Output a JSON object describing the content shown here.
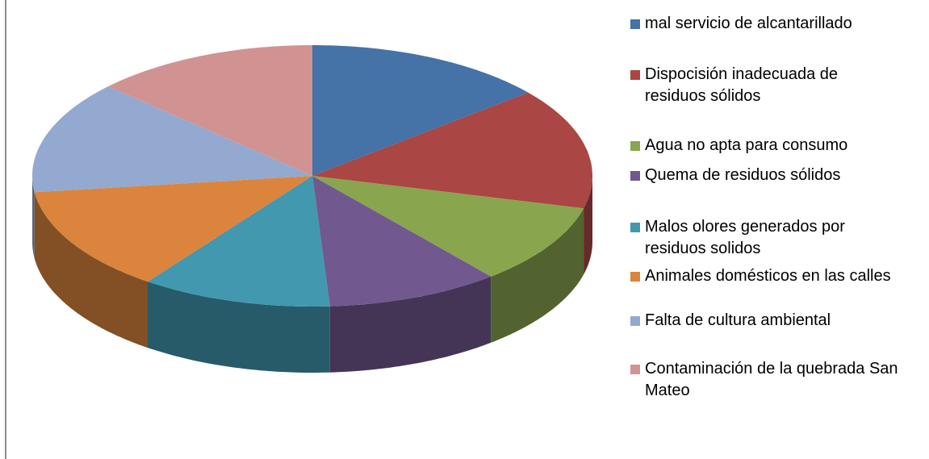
{
  "chart_data": {
    "type": "pie",
    "categories": [
      "mal servicio de alcantarillado",
      "Dispocisión inadecuada de residuos sólidos",
      "Agua no apta para consumo",
      "Quema de residuos sólidos",
      "Malos olores generados por residuos solidos",
      "Animales domésticos en las calles",
      "Falta de cultura ambiental",
      "Contaminación de la quebrada San Mateo"
    ],
    "values": [
      14,
      15,
      10,
      10,
      11,
      13,
      14,
      13
    ],
    "colors": [
      "#4572a7",
      "#aa4643",
      "#89a54e",
      "#71588f",
      "#4198af",
      "#db843d",
      "#93a9cf",
      "#d19392"
    ],
    "legend": "right"
  }
}
